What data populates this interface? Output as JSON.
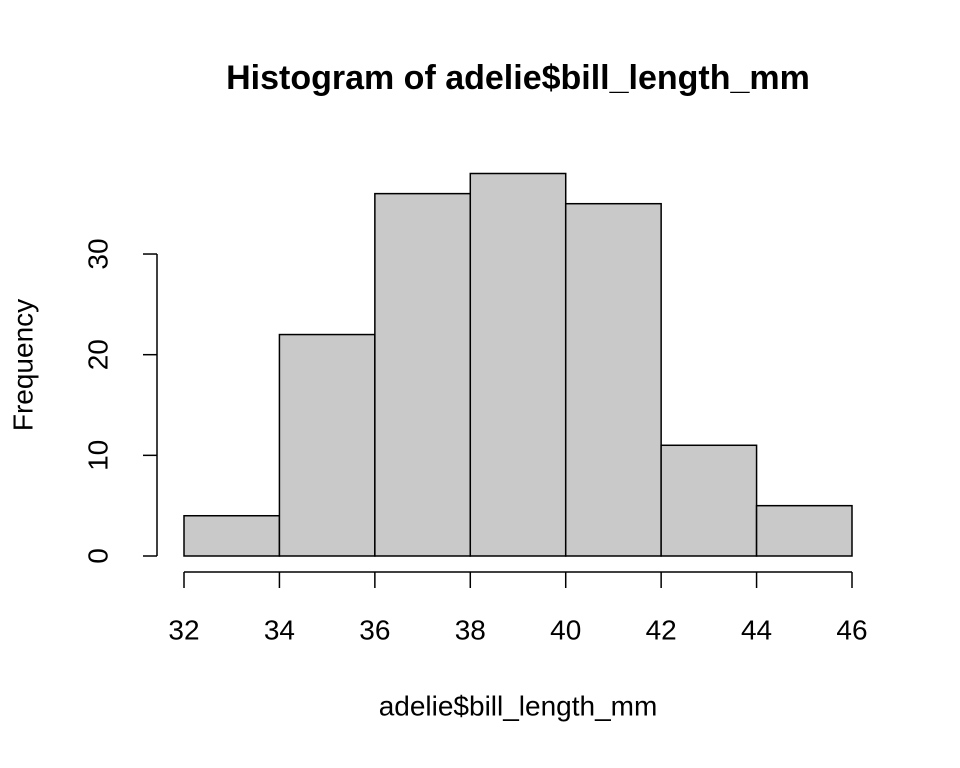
{
  "chart_data": {
    "type": "histogram",
    "title": "Histogram of adelie$bill_length_mm",
    "xlabel": "adelie$bill_length_mm",
    "ylabel": "Frequency",
    "bins": [
      32,
      34,
      36,
      38,
      40,
      42,
      44,
      46
    ],
    "values": [
      4,
      22,
      36,
      38,
      35,
      11,
      5
    ],
    "color": "#c9c9c9",
    "xlim": [
      32,
      46
    ],
    "xticks": [
      32,
      34,
      36,
      38,
      40,
      42,
      44,
      46
    ],
    "ylim": [
      0,
      38
    ],
    "yticks": [
      0,
      10,
      20,
      30
    ]
  }
}
